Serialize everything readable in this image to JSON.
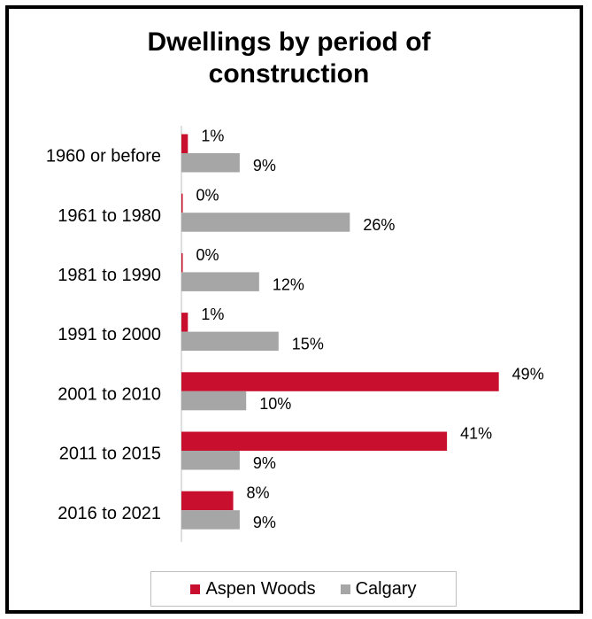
{
  "chart_data": {
    "type": "bar",
    "orientation": "horizontal",
    "title": "Dwellings by period of construction",
    "title_lines": [
      "Dwellings by period of",
      "construction"
    ],
    "categories": [
      "1960 or before",
      "1961 to 1980",
      "1981 to 1990",
      "1991 to 2000",
      "2001 to 2010",
      "2011 to 2015",
      "2016 to 2021"
    ],
    "series": [
      {
        "name": "Aspen Woods",
        "color": "#c8102e",
        "values": [
          1,
          0,
          0,
          1,
          49,
          41,
          8
        ],
        "labels": [
          "1%",
          "0%",
          "0%",
          "1%",
          "49%",
          "41%",
          "8%"
        ]
      },
      {
        "name": "Calgary",
        "color": "#a6a6a6",
        "values": [
          9,
          26,
          12,
          15,
          10,
          9,
          9
        ],
        "labels": [
          "9%",
          "26%",
          "12%",
          "15%",
          "10%",
          "9%",
          "9%"
        ]
      }
    ],
    "xlim": [
      0,
      50
    ],
    "grid": false,
    "legend_position": "bottom"
  }
}
